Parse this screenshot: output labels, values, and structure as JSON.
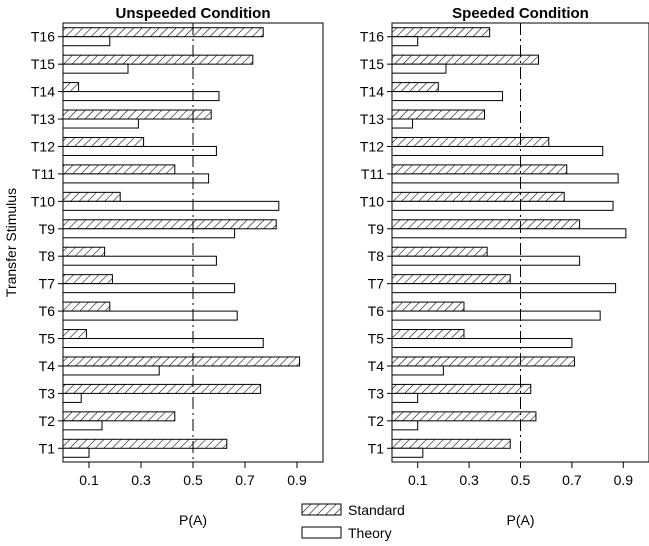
{
  "chart_data": [
    {
      "type": "bar",
      "orientation": "horizontal",
      "title": "Unspeeded Condition",
      "xlabel": "P(A)",
      "ylabel": "Transfer Stimulus",
      "xlim": [
        0,
        1.0
      ],
      "xticks": [
        0.1,
        0.3,
        0.5,
        0.7,
        0.9
      ],
      "reference_line": 0.5,
      "grid": false,
      "categories": [
        "T1",
        "T2",
        "T3",
        "T4",
        "T5",
        "T6",
        "T7",
        "T8",
        "T9",
        "T10",
        "T11",
        "T12",
        "T13",
        "T14",
        "T15",
        "T16"
      ],
      "series": [
        {
          "name": "Standard",
          "values": [
            0.63,
            0.43,
            0.76,
            0.91,
            0.09,
            0.18,
            0.19,
            0.16,
            0.82,
            0.22,
            0.43,
            0.31,
            0.57,
            0.06,
            0.73,
            0.77
          ]
        },
        {
          "name": "Theory",
          "values": [
            0.1,
            0.15,
            0.07,
            0.37,
            0.77,
            0.67,
            0.66,
            0.59,
            0.66,
            0.83,
            0.56,
            0.59,
            0.29,
            0.6,
            0.25,
            0.18
          ]
        }
      ]
    },
    {
      "type": "bar",
      "orientation": "horizontal",
      "title": "Speeded Condition",
      "xlabel": "P(A)",
      "ylabel": "",
      "xlim": [
        0,
        1.0
      ],
      "xticks": [
        0.1,
        0.3,
        0.5,
        0.7,
        0.9
      ],
      "reference_line": 0.5,
      "grid": false,
      "categories": [
        "T1",
        "T2",
        "T3",
        "T4",
        "T5",
        "T6",
        "T7",
        "T8",
        "T9",
        "T10",
        "T11",
        "T12",
        "T13",
        "T14",
        "T15",
        "T16"
      ],
      "series": [
        {
          "name": "Standard",
          "values": [
            0.46,
            0.56,
            0.54,
            0.71,
            0.28,
            0.28,
            0.46,
            0.37,
            0.73,
            0.67,
            0.68,
            0.61,
            0.36,
            0.18,
            0.57,
            0.38
          ]
        },
        {
          "name": "Theory",
          "values": [
            0.12,
            0.1,
            0.1,
            0.2,
            0.7,
            0.81,
            0.87,
            0.73,
            0.91,
            0.86,
            0.88,
            0.82,
            0.08,
            0.43,
            0.21,
            0.1
          ]
        }
      ]
    }
  ],
  "legend": {
    "position": "bottom-center",
    "items": [
      {
        "label": "Standard",
        "style": "hatched"
      },
      {
        "label": "Theory",
        "style": "open"
      }
    ]
  }
}
